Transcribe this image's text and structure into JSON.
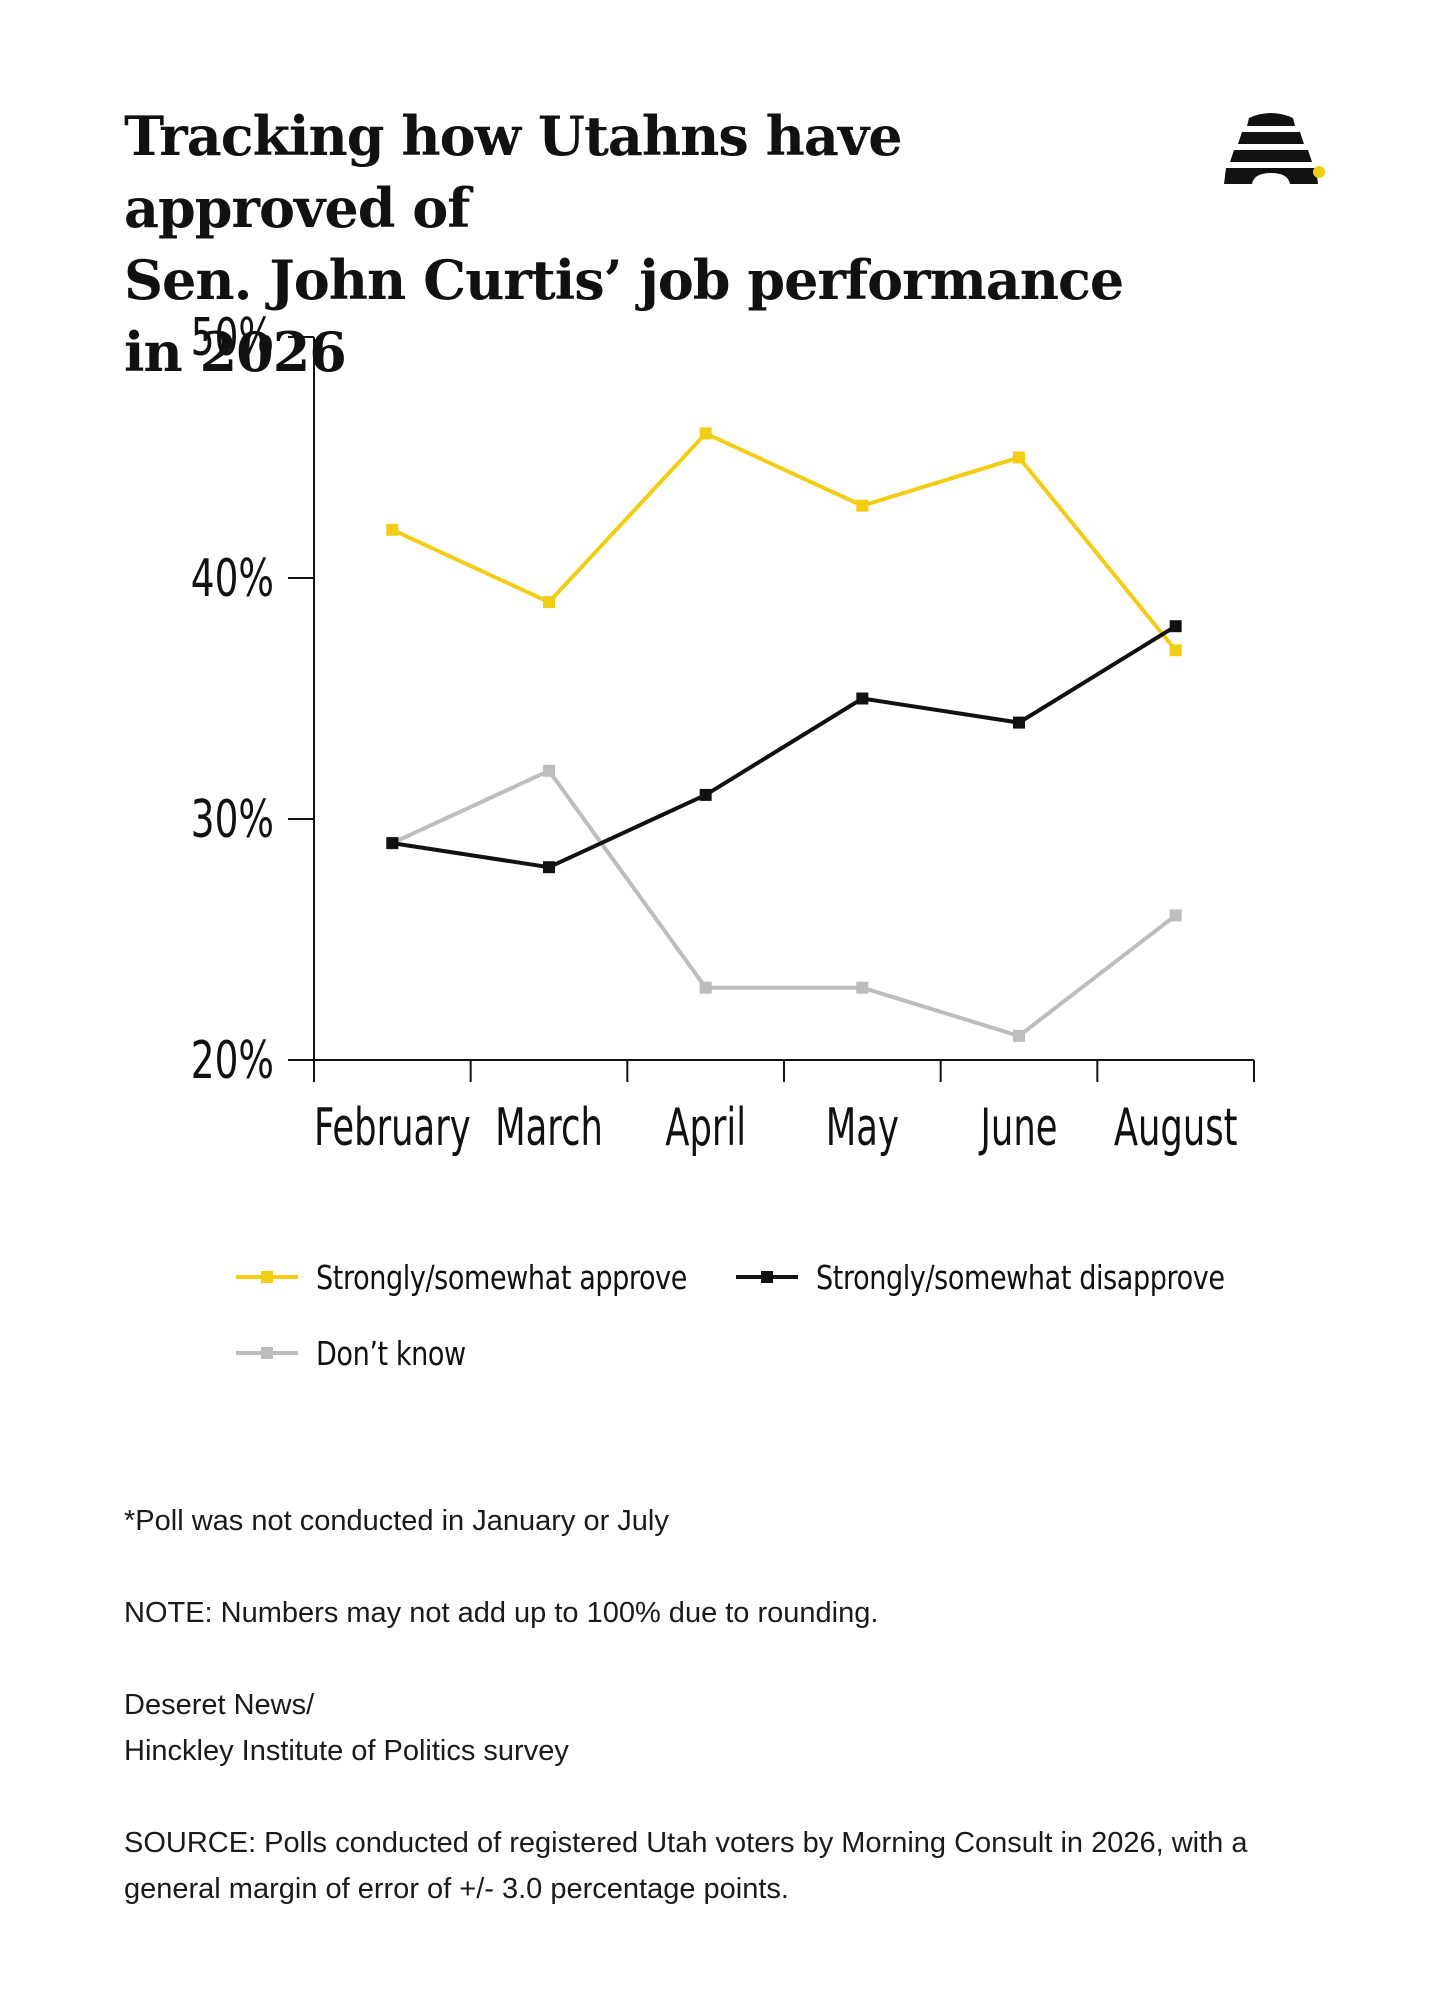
{
  "title_line1": "Tracking how Utahns have approved of",
  "title_line2": "Sen. John Curtis’ job performance in 2026",
  "logo": {
    "icon": "beehive-icon",
    "color": "#111111",
    "dot_color": "#f2cd14"
  },
  "chart_data": {
    "type": "line",
    "categories": [
      "February",
      "March",
      "April",
      "May",
      "June",
      "August"
    ],
    "ylim": [
      20,
      50
    ],
    "yticks": [
      20,
      30,
      40,
      50
    ],
    "ytick_labels": [
      "20%",
      "30%",
      "40%",
      "50%"
    ],
    "grid": false,
    "legend_position": "bottom",
    "series": [
      {
        "name": "Strongly/somewhat approve",
        "color": "#f2cd14",
        "values": [
          42,
          39,
          46,
          43,
          45,
          37
        ]
      },
      {
        "name": "Strongly/somewhat disapprove",
        "color": "#111111",
        "values": [
          29,
          28,
          31,
          35,
          34,
          38
        ]
      },
      {
        "name": "Don’t know",
        "color": "#bdbdbd",
        "values": [
          29,
          32,
          23,
          23,
          21,
          26
        ]
      }
    ]
  },
  "notes": {
    "poll_note": "*Poll was not conducted in January or July",
    "rounding_note": "NOTE: Numbers may not add up to 100% due to rounding.",
    "credit_line1": "Deseret News/",
    "credit_line2": "Hinckley Institute of Politics survey",
    "source": "SOURCE: Polls conducted of registered Utah voters by Morning Consult in 2026, with a general margin of error of +/- 3.0 percentage points."
  }
}
